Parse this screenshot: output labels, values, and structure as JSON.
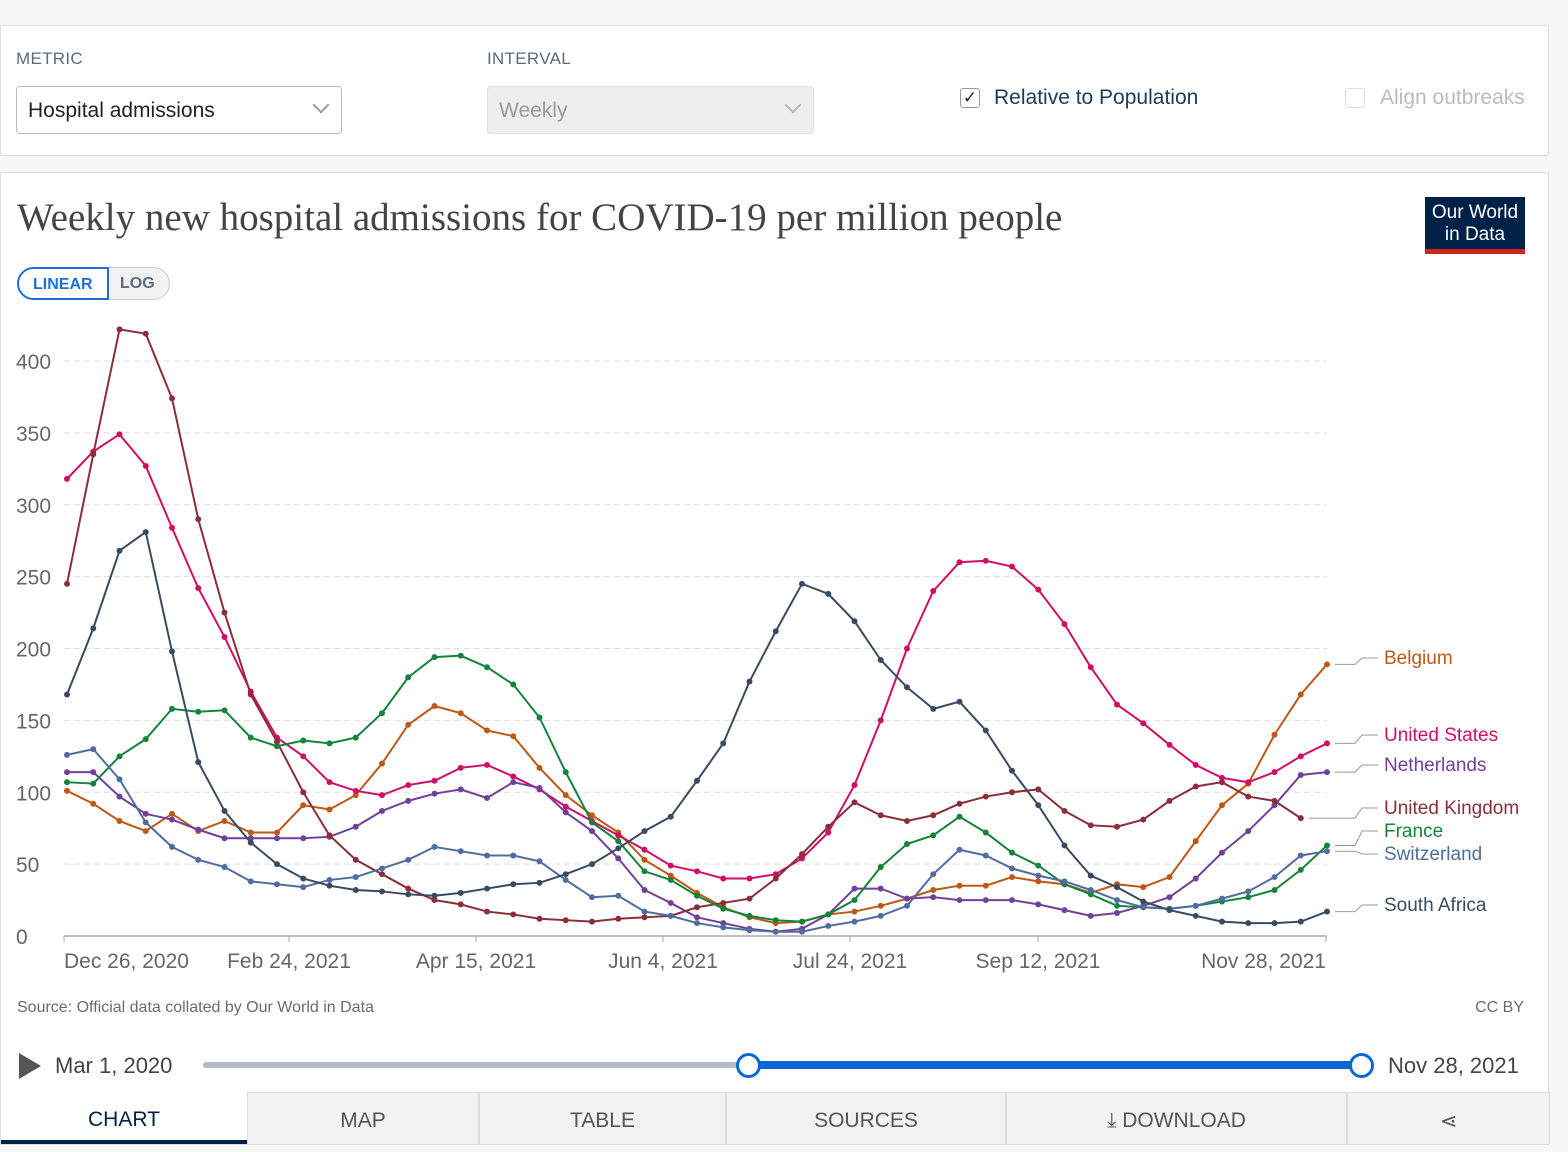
{
  "controls": {
    "metric_label": "METRIC",
    "metric_value": "Hospital admissions",
    "interval_label": "INTERVAL",
    "interval_value": "Weekly",
    "relative_label": "Relative to Population",
    "relative_checked": true,
    "align_label": "Align outbreaks",
    "align_checked": false
  },
  "logo": {
    "line1": "Our World",
    "line2": "in Data"
  },
  "scale": {
    "linear": "LINEAR",
    "log": "LOG",
    "selected": "linear"
  },
  "footer": {
    "source": "Source: Official data collated by Our World in Data",
    "license": "CC BY"
  },
  "timeline": {
    "start": "Mar 1, 2020",
    "end": "Nov 28, 2021",
    "selection_start_fraction": 0.47,
    "selection_end_fraction": 1.0
  },
  "tabs": [
    "CHART",
    "MAP",
    "TABLE",
    "SOURCES",
    "DOWNLOAD"
  ],
  "icons": {
    "download": "download-icon",
    "share": "share-icon",
    "play": "play-icon"
  },
  "chart_data": {
    "type": "line",
    "title": "Weekly new hospital admissions for COVID-19 per million people",
    "x_start": "Dec 26, 2020",
    "x_interval": "weekly",
    "x_ticks": [
      "Dec 26, 2020",
      "Feb 24, 2021",
      "Apr 15, 2021",
      "Jun 4, 2021",
      "Jul 24, 2021",
      "Sep 12, 2021",
      "Nov 28, 2021"
    ],
    "y_ticks": [
      0,
      50,
      100,
      150,
      200,
      250,
      300,
      350,
      400
    ],
    "ylim": [
      0,
      425
    ],
    "grid": true,
    "legend": "right",
    "series": [
      {
        "name": "Belgium",
        "color": "#be5915",
        "values": [
          101,
          92,
          80,
          73,
          85,
          73,
          80,
          72,
          72,
          91,
          88,
          98,
          120,
          147,
          160,
          155,
          143,
          139,
          117,
          98,
          84,
          72,
          53,
          42,
          30,
          20,
          13,
          9,
          10,
          15,
          17,
          21,
          26,
          32,
          35,
          35,
          41,
          38,
          36,
          30,
          36,
          34,
          41,
          66,
          91,
          106,
          140,
          168,
          189
        ]
      },
      {
        "name": "United States",
        "color": "#d10e66",
        "values": [
          318,
          337,
          349,
          327,
          284,
          242,
          208,
          170,
          138,
          125,
          107,
          101,
          98,
          105,
          108,
          117,
          119,
          111,
          102,
          90,
          80,
          70,
          60,
          49,
          45,
          40,
          40,
          43,
          54,
          72,
          105,
          150,
          200,
          240,
          260,
          261,
          257,
          241,
          217,
          187,
          161,
          148,
          133,
          119,
          110,
          107,
          114,
          125,
          134
        ]
      },
      {
        "name": "Netherlands",
        "color": "#70409a",
        "values": [
          114,
          114,
          97,
          85,
          81,
          74,
          68,
          68,
          68,
          68,
          69,
          76,
          87,
          94,
          99,
          102,
          96,
          107,
          103,
          86,
          73,
          54,
          32,
          23,
          13,
          9,
          5,
          3,
          5,
          15,
          33,
          33,
          26,
          27,
          25,
          25,
          25,
          22,
          18,
          14,
          16,
          21,
          27,
          40,
          58,
          73,
          91,
          112,
          114
        ]
      },
      {
        "name": "United Kingdom",
        "color": "#8a2f3a",
        "values": [
          245,
          335,
          422,
          419,
          374,
          290,
          225,
          168,
          135,
          100,
          70,
          53,
          43,
          33,
          25,
          22,
          17,
          15,
          12,
          11,
          10,
          12,
          13,
          14,
          20,
          23,
          26,
          40,
          57,
          76,
          93,
          84,
          80,
          84,
          92,
          97,
          100,
          102,
          87,
          77,
          76,
          81,
          94,
          104,
          107,
          97,
          94,
          82
        ]
      },
      {
        "name": "France",
        "color": "#14843c",
        "values": [
          107,
          106,
          125,
          137,
          158,
          156,
          157,
          138,
          132,
          136,
          134,
          138,
          155,
          180,
          194,
          195,
          187,
          175,
          152,
          114,
          79,
          66,
          45,
          39,
          28,
          19,
          14,
          11,
          10,
          15,
          25,
          48,
          64,
          70,
          83,
          72,
          58,
          49,
          36,
          29,
          21,
          20,
          19,
          21,
          24,
          27,
          32,
          46,
          63
        ]
      },
      {
        "name": "Switzerland",
        "color": "#4f6d9e",
        "values": [
          126,
          130,
          109,
          79,
          62,
          53,
          48,
          38,
          36,
          34,
          39,
          41,
          47,
          53,
          62,
          59,
          56,
          56,
          52,
          39,
          27,
          28,
          17,
          14,
          9,
          6,
          4,
          3,
          3,
          7,
          10,
          14,
          21,
          43,
          60,
          56,
          47,
          42,
          38,
          32,
          25,
          20,
          19,
          21,
          26,
          31,
          41,
          56,
          59
        ]
      },
      {
        "name": "South Africa",
        "color": "#3a4a63",
        "values": [
          168,
          214,
          268,
          281,
          198,
          121,
          87,
          65,
          50,
          40,
          35,
          32,
          31,
          29,
          28,
          30,
          33,
          36,
          37,
          43,
          50,
          61,
          73,
          83,
          108,
          134,
          177,
          212,
          245,
          238,
          219,
          192,
          173,
          158,
          163,
          143,
          115,
          91,
          63,
          42,
          34,
          24,
          18,
          14,
          10,
          9,
          9,
          10,
          17
        ]
      }
    ]
  }
}
